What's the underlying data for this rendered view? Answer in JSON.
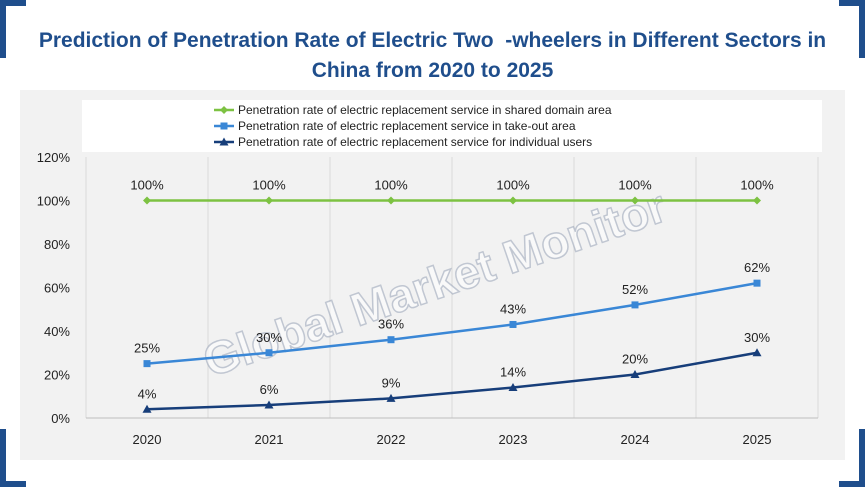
{
  "chart_data": {
    "type": "line",
    "title_lines": [
      "Prediction of Penetration Rate of Electric Two  -wheelers in Different Sectors in",
      "China from 2020 to 2025"
    ],
    "categories": [
      "2020",
      "2021",
      "2022",
      "2023",
      "2024",
      "2025"
    ],
    "ylim": [
      0,
      120
    ],
    "yticks": [
      "0%",
      "20%",
      "40%",
      "60%",
      "80%",
      "100%",
      "120%"
    ],
    "ytick_values": [
      0,
      20,
      40,
      60,
      80,
      100,
      120
    ],
    "legend_position": "top",
    "grid": "vertical",
    "series": [
      {
        "name": "Penetration rate of electric replacement service in shared domain area",
        "values": [
          100,
          100,
          100,
          100,
          100,
          100
        ],
        "labels": [
          "100%",
          "100%",
          "100%",
          "100%",
          "100%",
          "100%"
        ],
        "color": "#7dc242",
        "marker": "diamond"
      },
      {
        "name": "Penetration rate of electric replacement service in take-out area",
        "values": [
          25,
          30,
          36,
          43,
          52,
          62
        ],
        "labels": [
          "25%",
          "30%",
          "36%",
          "43%",
          "52%",
          "62%"
        ],
        "color": "#3a87d6",
        "marker": "square"
      },
      {
        "name": "Penetration rate of electric replacement service for individual users",
        "values": [
          4,
          6,
          9,
          14,
          20,
          30
        ],
        "labels": [
          "4%",
          "6%",
          "9%",
          "14%",
          "20%",
          "30%"
        ],
        "color": "#173e7a",
        "marker": "triangle"
      }
    ]
  },
  "watermark": "Global Market Monitor",
  "colors": {
    "frame_accent": "#1f4e8c",
    "title": "#1f4e8c",
    "plot_bg": "#f2f2f2"
  }
}
